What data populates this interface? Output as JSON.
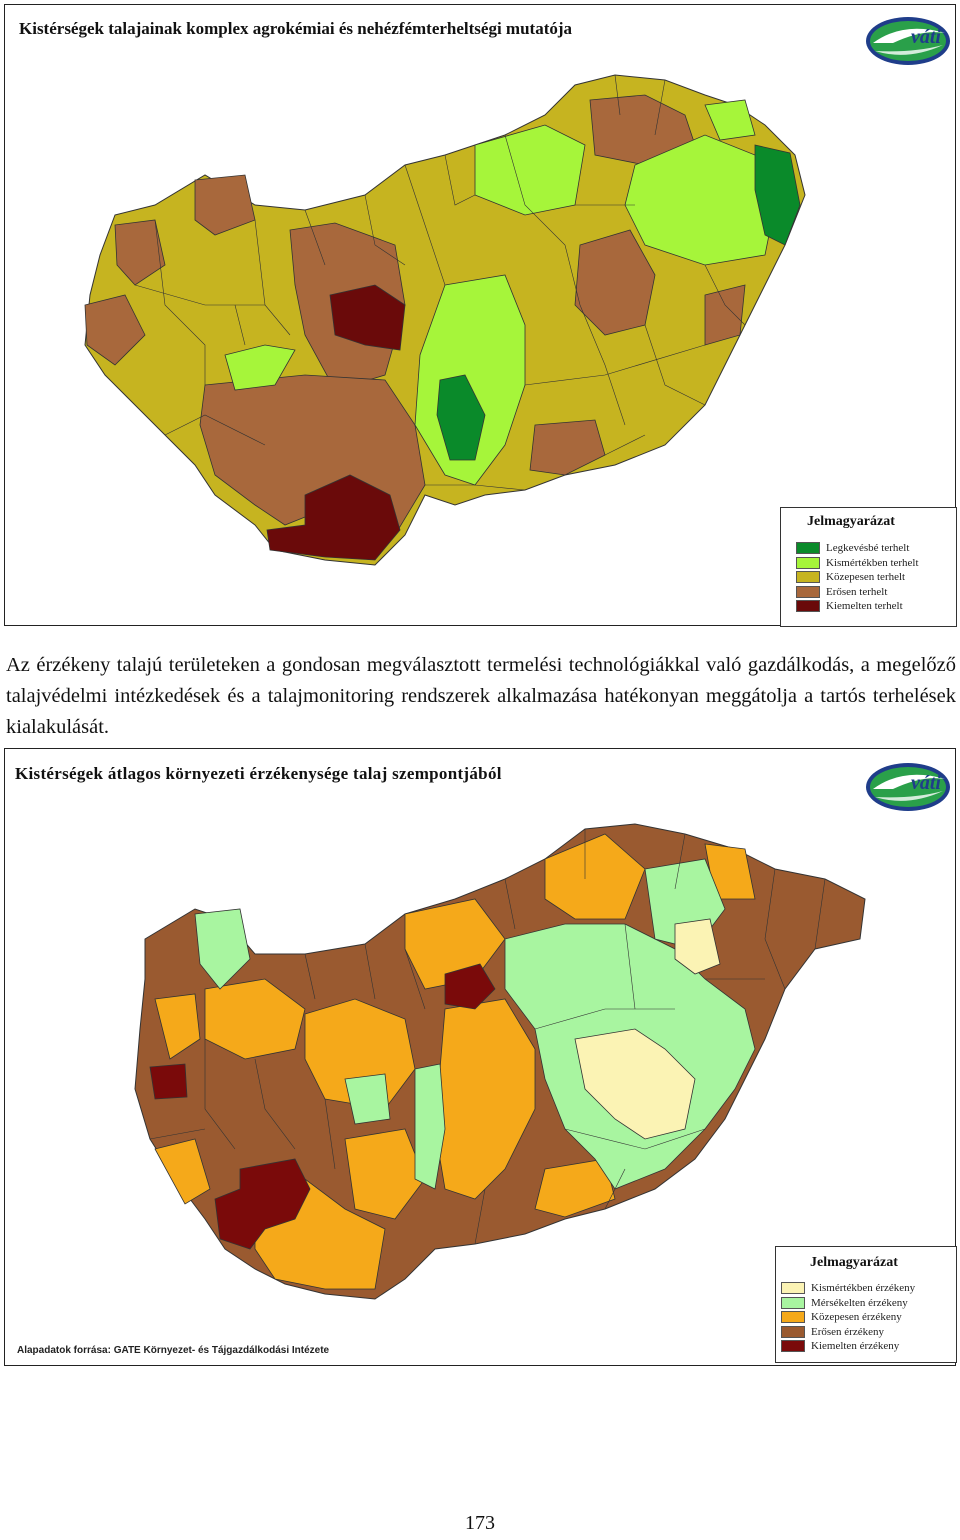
{
  "map1": {
    "title": "Kistérségek talajainak komplex agrokémiai és nehézfémterheltségi mutatója",
    "logo_text": "váti",
    "legend": {
      "title": "Jelmagyarázat",
      "items": [
        {
          "label": "Legkevésbé terhelt",
          "color": "#0a8a2a"
        },
        {
          "label": "Kismértékben terhelt",
          "color": "#a6f53a"
        },
        {
          "label": "Közepesen terhelt",
          "color": "#c6b420"
        },
        {
          "label": "Erősen terhelt",
          "color": "#a8683c"
        },
        {
          "label": "Kiemelten terhelt",
          "color": "#6a0a0a"
        }
      ]
    }
  },
  "paragraph": "Az érzékeny talajú területeken a gondosan megválasztott termelési technológiákkal való gazdálkodás, a megelőző talajvédelmi intézkedések és a talajmonitoring rendszerek alkalmazása hatékonyan meggátolja a tartós terhelések kialakulását.",
  "map2": {
    "title": "Kistérségek átlagos környezeti érzékenysége talaj szempontjából",
    "logo_text": "váti",
    "source": "Alapadatok forrása: GATE Környezet- és Tájgazdálkodási Intézete",
    "legend": {
      "title": "Jelmagyarázat",
      "items": [
        {
          "label": "Kismértékben érzékeny",
          "color": "#fbf3b4"
        },
        {
          "label": "Mérsékelten érzékeny",
          "color": "#a8f5a0"
        },
        {
          "label": "Közepesen érzékeny",
          "color": "#f5a91a"
        },
        {
          "label": "Erősen érzékeny",
          "color": "#9a5a30"
        },
        {
          "label": "Kiemelten érzékeny",
          "color": "#7a0a0a"
        }
      ]
    }
  },
  "page_number": "173"
}
